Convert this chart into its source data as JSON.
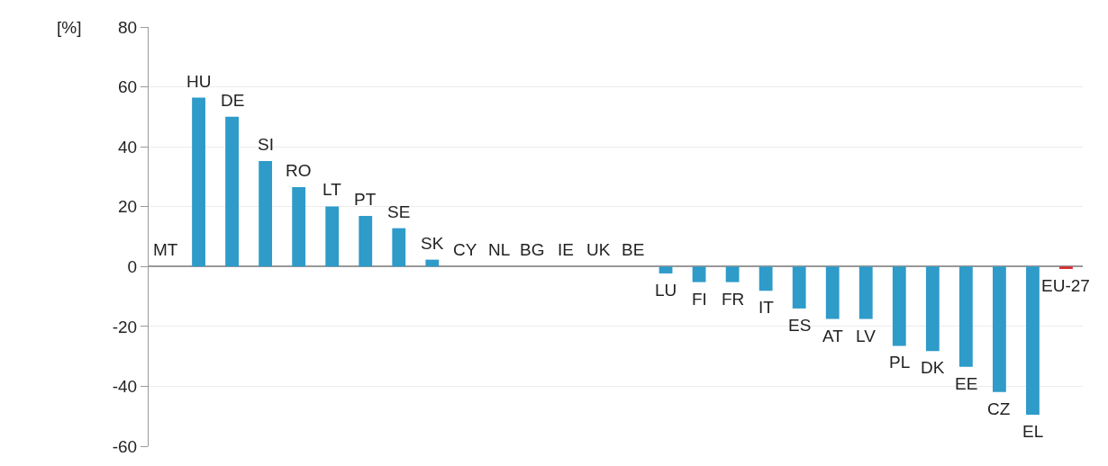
{
  "chart_data": {
    "type": "bar",
    "ylabel": "[%]",
    "categories": [
      "MT",
      "HU",
      "DE",
      "SI",
      "RO",
      "LT",
      "PT",
      "SE",
      "SK",
      "CY",
      "NL",
      "BG",
      "IE",
      "UK",
      "BE",
      "LU",
      "FI",
      "FR",
      "IT",
      "ES",
      "AT",
      "LV",
      "PL",
      "DK",
      "EE",
      "CZ",
      "EL",
      "EU-27"
    ],
    "values": [
      0,
      56.4,
      50.0,
      35.2,
      26.5,
      20.1,
      16.9,
      12.8,
      2.3,
      0,
      0,
      0,
      0,
      0,
      0,
      -2.3,
      -5.2,
      -5.2,
      -8.1,
      -14.0,
      -17.5,
      -17.5,
      -26.5,
      -28.2,
      -33.5,
      -41.9,
      -49.5,
      -0.8
    ],
    "colors": [
      "#2e9bc9",
      "#2e9bc9",
      "#2e9bc9",
      "#2e9bc9",
      "#2e9bc9",
      "#2e9bc9",
      "#2e9bc9",
      "#2e9bc9",
      "#2e9bc9",
      "#2e9bc9",
      "#2e9bc9",
      "#2e9bc9",
      "#2e9bc9",
      "#2e9bc9",
      "#2e9bc9",
      "#2e9bc9",
      "#2e9bc9",
      "#2e9bc9",
      "#2e9bc9",
      "#2e9bc9",
      "#2e9bc9",
      "#2e9bc9",
      "#2e9bc9",
      "#2e9bc9",
      "#2e9bc9",
      "#2e9bc9",
      "#2e9bc9",
      "#d9262e"
    ],
    "ylim": [
      -60,
      80
    ],
    "yticks": [
      -60,
      -40,
      -20,
      0,
      20,
      40,
      60,
      80
    ],
    "grid": "y",
    "legend": false,
    "tick_labels": "y"
  }
}
